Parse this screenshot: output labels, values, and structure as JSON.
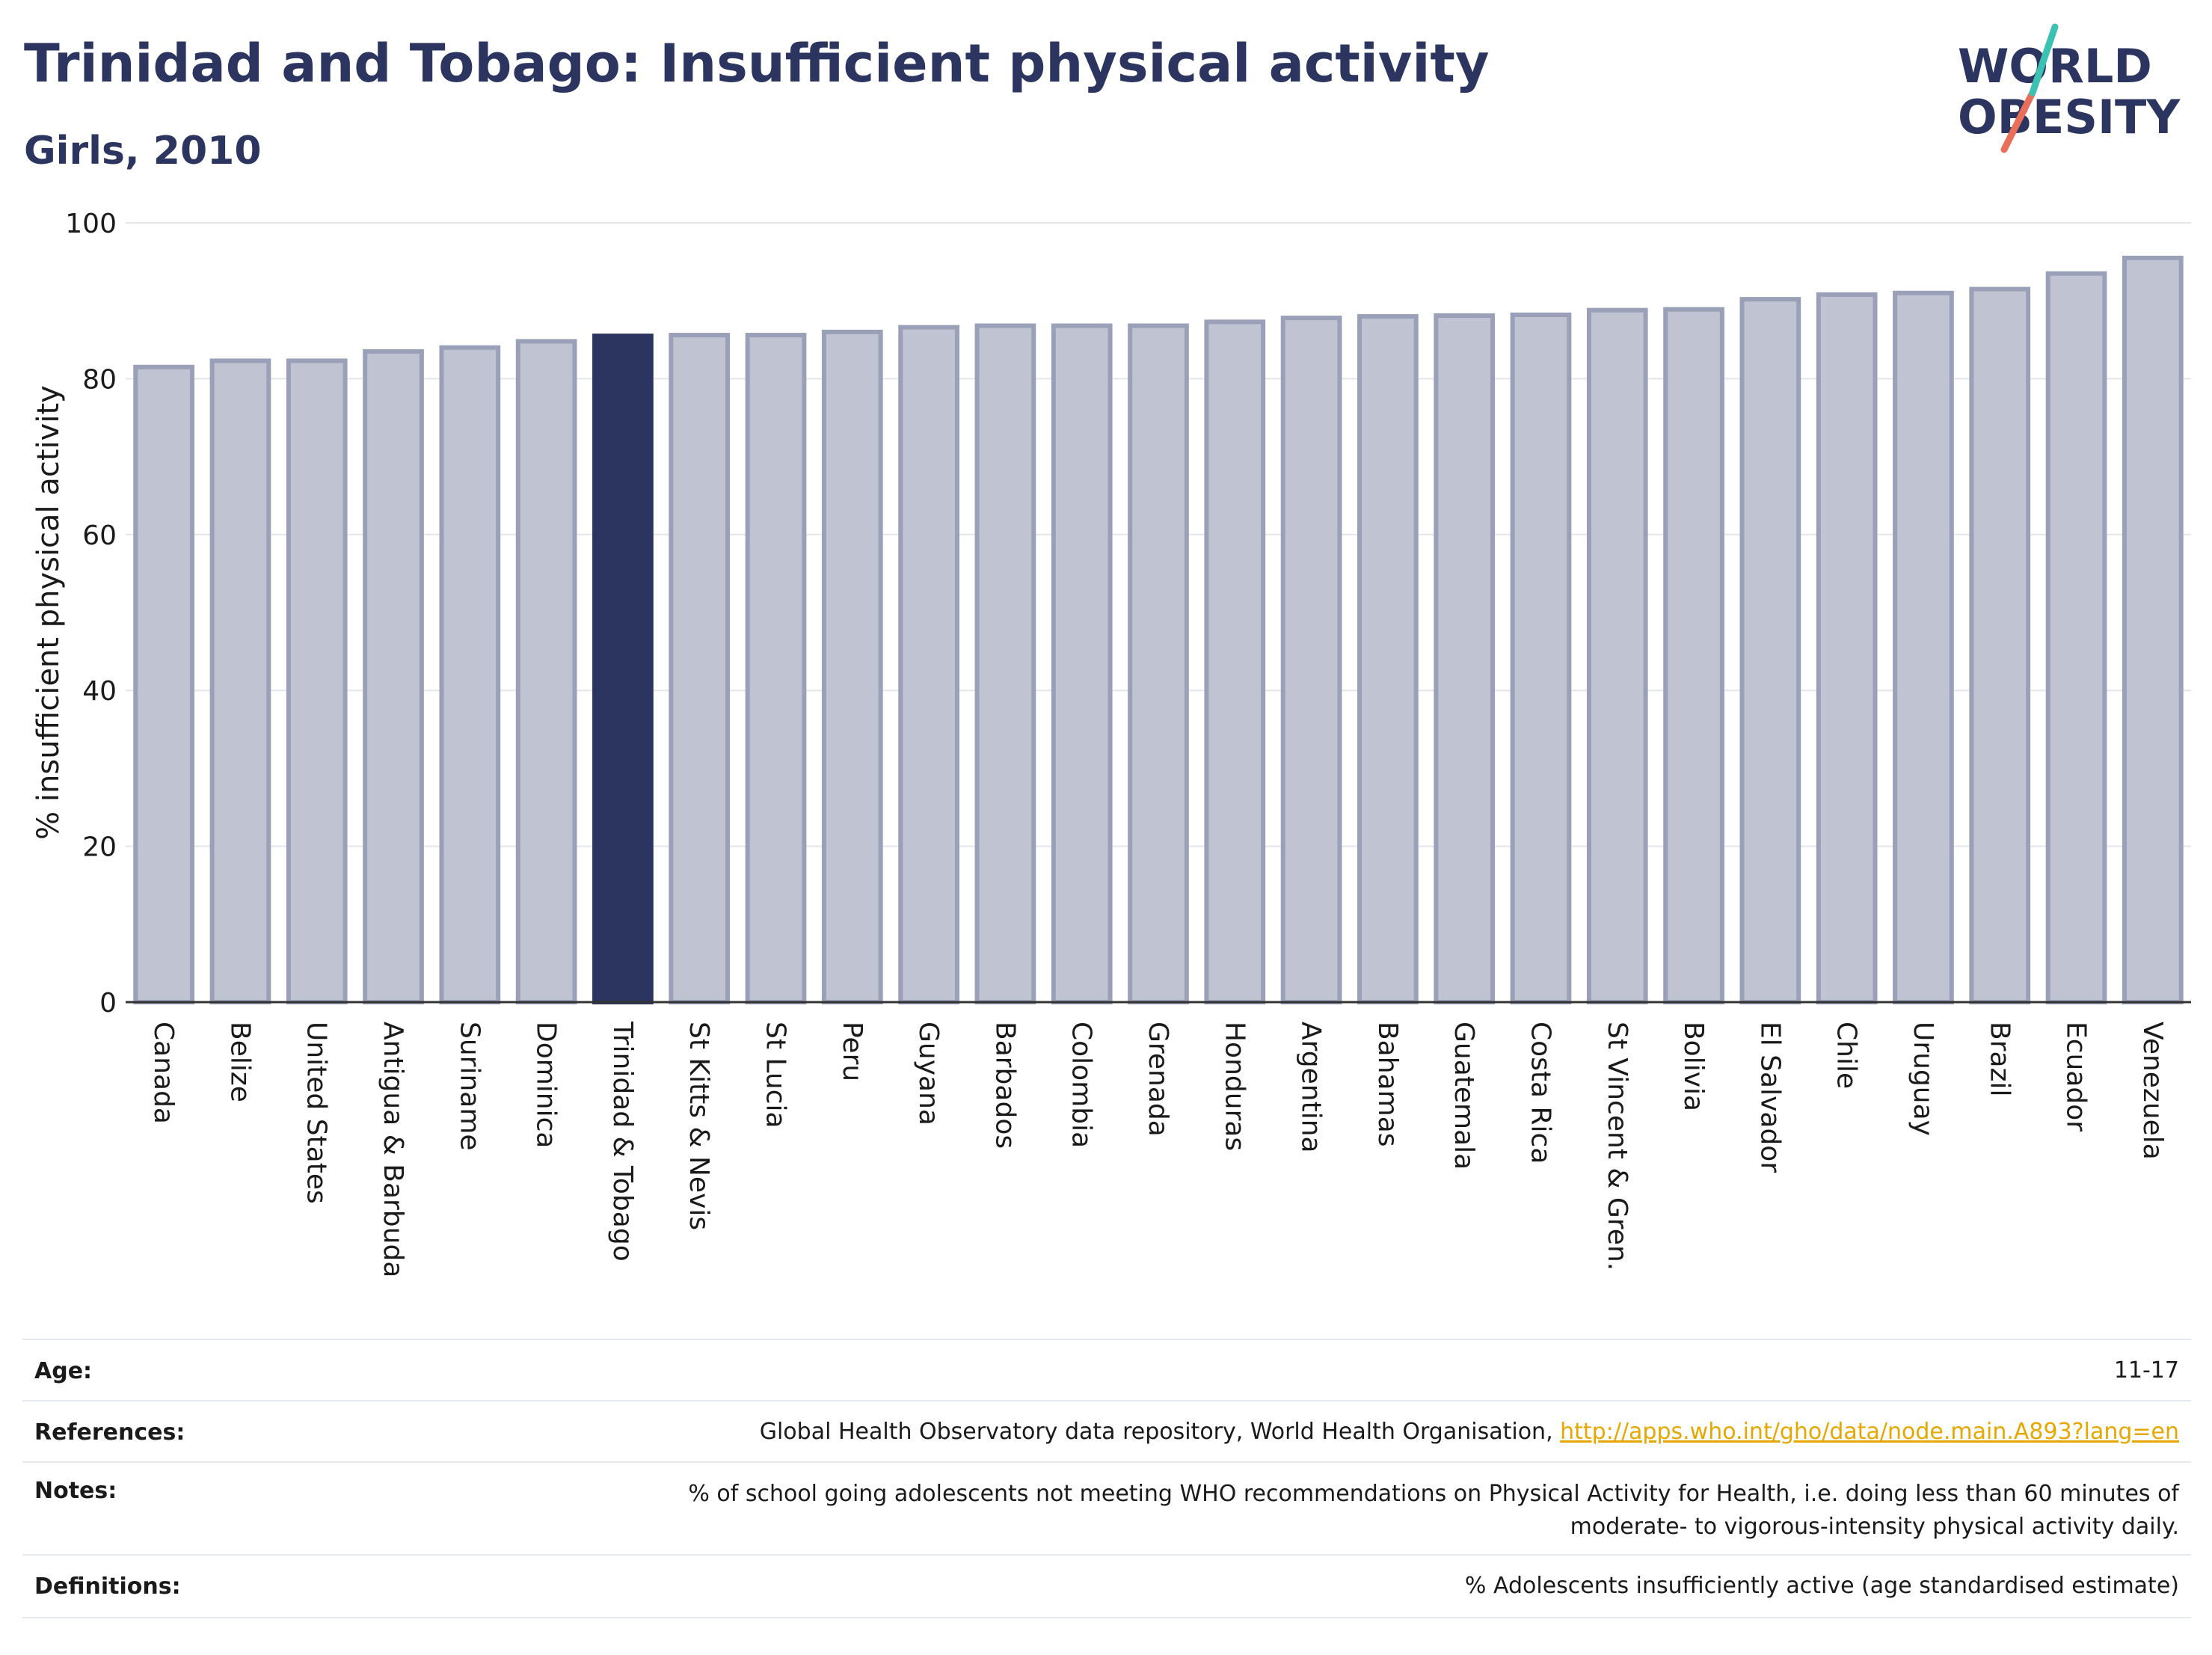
{
  "header": {
    "title": "Trinidad and Tobago: Insufficient physical activity",
    "subtitle": "Girls, 2010"
  },
  "logo": {
    "line1": "WORLD",
    "line2": "OBESITY"
  },
  "chart_data": {
    "type": "bar",
    "ylabel": "% insufficient physical activity",
    "ylim": [
      0,
      100
    ],
    "yticks": [
      0,
      20,
      40,
      60,
      80,
      100
    ],
    "grid": true,
    "highlight": "Trinidad & Tobago",
    "categories": [
      "Canada",
      "Belize",
      "United States",
      "Antigua & Barbuda",
      "Suriname",
      "Dominica",
      "Trinidad & Tobago",
      "St Kitts & Nevis",
      "St Lucia",
      "Peru",
      "Guyana",
      "Barbados",
      "Colombia",
      "Grenada",
      "Honduras",
      "Argentina",
      "Bahamas",
      "Guatemala",
      "Costa Rica",
      "St Vincent & Gren.",
      "Bolivia",
      "El Salvador",
      "Chile",
      "Uruguay",
      "Brazil",
      "Ecuador",
      "Venezuela"
    ],
    "values": [
      81.5,
      82.3,
      82.3,
      83.5,
      84.0,
      84.8,
      85.5,
      85.6,
      85.6,
      86.0,
      86.6,
      86.8,
      86.8,
      86.8,
      87.3,
      87.8,
      88.0,
      88.1,
      88.2,
      88.8,
      88.9,
      90.2,
      90.8,
      91.0,
      91.5,
      93.5,
      95.5
    ]
  },
  "colors": {
    "bar": "#bfc3d2",
    "bar_edge": "#9aa0b8",
    "highlight": "#2b3560",
    "title": "#2b3560",
    "link": "#e6a800"
  },
  "info": {
    "age_label": "Age:",
    "age_value": "11-17",
    "references_label": "References:",
    "references_text": "Global Health Observatory data repository, World Health Organisation, ",
    "references_link": "http://apps.who.int/gho/data/node.main.A893?lang=en",
    "notes_label": "Notes:",
    "notes_line1": "% of school going adolescents not meeting WHO recommendations on Physical Activity for Health, i.e. doing less than 60 minutes of",
    "notes_line2": "moderate- to vigorous-intensity physical activity daily.",
    "definitions_label": "Definitions:",
    "definitions_value": "% Adolescents insufficiently active (age standardised estimate)"
  }
}
